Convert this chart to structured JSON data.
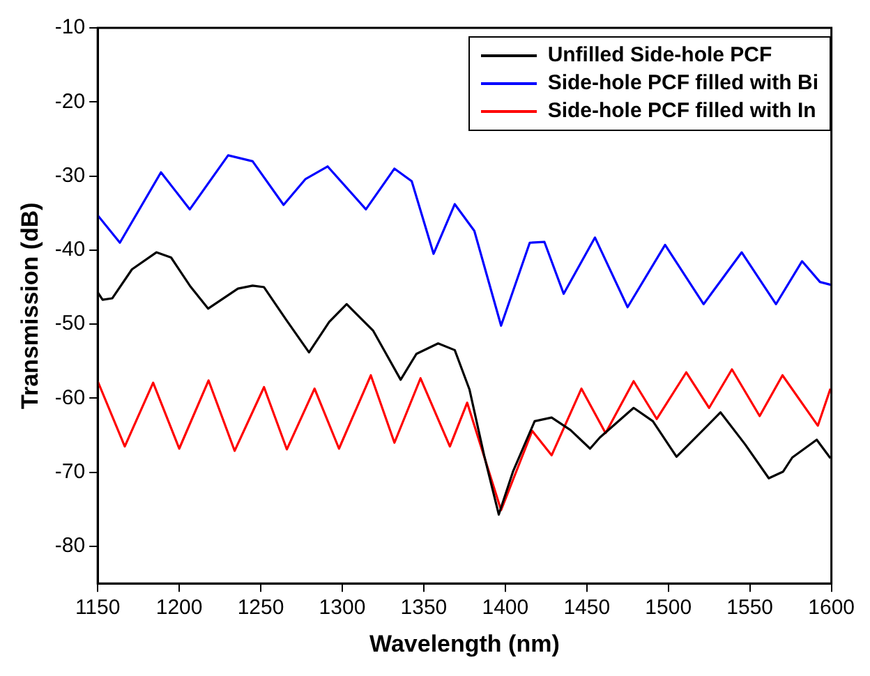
{
  "chart_data": {
    "type": "line",
    "xlabel": "Wavelength (nm)",
    "ylabel": "Transmission (dB)",
    "xlim": [
      1150,
      1600
    ],
    "xticks": [
      1150,
      1200,
      1250,
      1300,
      1350,
      1400,
      1450,
      1500,
      1550,
      1600
    ],
    "ylim": [
      -85,
      -10
    ],
    "yticks": [
      -80,
      -70,
      -60,
      -50,
      -40,
      -30,
      -20,
      -10
    ],
    "grid": false,
    "legend": "top right",
    "marker": "none",
    "line_style": "solid",
    "series": [
      {
        "name": "Unfilled Side-hole PCF",
        "color": "#000000",
        "x": [
          1150,
          1153,
          1159,
          1171,
          1186,
          1195,
          1206.5,
          1217.7,
          1236,
          1245,
          1252,
          1265.6,
          1279.6,
          1292,
          1302.7,
          1319,
          1335.8,
          1345.5,
          1358.8,
          1369,
          1378,
          1387,
          1396,
          1404.7,
          1418,
          1428.4,
          1440,
          1452,
          1458,
          1478.7,
          1490.5,
          1505,
          1532,
          1547,
          1561.6,
          1570.4,
          1576,
          1591,
          1599.4
        ],
        "values": [
          -45.7,
          -46.7,
          -46.5,
          -42.6,
          -40.3,
          -41,
          -44.8,
          -47.9,
          -45.2,
          -44.8,
          -45,
          -49.4,
          -53.8,
          -49.7,
          -47.3,
          -50.9,
          -57.5,
          -54,
          -52.6,
          -53.5,
          -58.8,
          -67.7,
          -75.7,
          -69.9,
          -63.1,
          -62.6,
          -64.3,
          -66.8,
          -65.3,
          -61.3,
          -63.1,
          -67.9,
          -61.9,
          -66.2,
          -70.8,
          -69.9,
          -68,
          -65.6,
          -68.1
        ]
      },
      {
        "name": "Side-hole PCF filled with Bi",
        "color": "#0000ff",
        "x": [
          1150,
          1163.6,
          1188.8,
          1206.5,
          1230,
          1245,
          1264,
          1277.5,
          1291,
          1314.5,
          1332,
          1342.6,
          1356,
          1369,
          1381,
          1397.4,
          1415,
          1424,
          1435.8,
          1455,
          1475,
          1498,
          1521.6,
          1545,
          1566,
          1582,
          1593,
          1600
        ],
        "values": [
          -35.3,
          -39,
          -29.5,
          -34.5,
          -27.2,
          -28,
          -33.9,
          -30.4,
          -28.7,
          -34.5,
          -29,
          -30.7,
          -40.5,
          -33.8,
          -37.4,
          -50.2,
          -39,
          -38.9,
          -45.9,
          -38.3,
          -47.7,
          -39.3,
          -47.3,
          -40.3,
          -47.3,
          -41.5,
          -44.3,
          -44.7
        ]
      },
      {
        "name": "Side-hole PCF filled with In",
        "color": "#ff0000",
        "x": [
          1150,
          1166.6,
          1184,
          1200,
          1218,
          1234,
          1252,
          1266,
          1283,
          1298,
          1317.5,
          1332,
          1348,
          1366,
          1376.6,
          1397.4,
          1416.5,
          1428.4,
          1446.7,
          1461.5,
          1478.7,
          1492.9,
          1511,
          1525,
          1539,
          1556,
          1570,
          1591.7,
          1599.4
        ],
        "values": [
          -57.7,
          -66.5,
          -57.9,
          -66.8,
          -57.6,
          -67.1,
          -58.5,
          -66.9,
          -58.7,
          -66.8,
          -56.9,
          -66,
          -57.3,
          -66.5,
          -60.6,
          -75.1,
          -64.4,
          -67.7,
          -58.7,
          -64.7,
          -57.7,
          -62.8,
          -56.5,
          -61.3,
          -56.1,
          -62.4,
          -56.9,
          -63.7,
          -58.7
        ]
      }
    ]
  }
}
